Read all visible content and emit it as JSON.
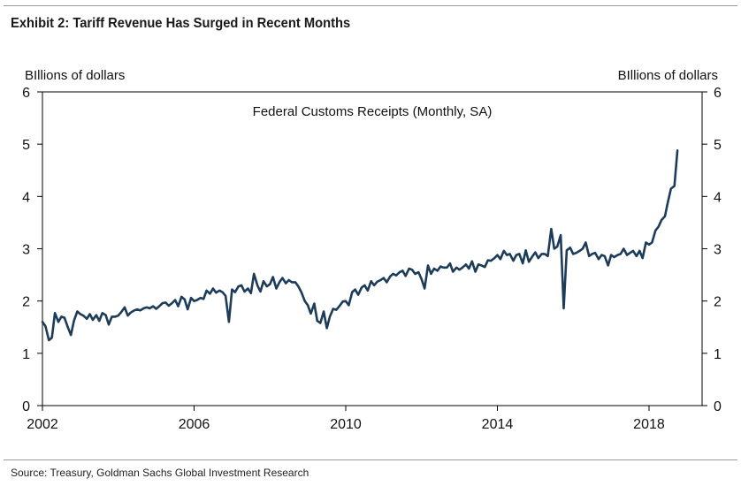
{
  "header": {
    "title": "Exhibit 2: Tariff Revenue Has Surged in Recent Months"
  },
  "footer": {
    "source": "Source: Treasury, Goldman Sachs Global Investment Research"
  },
  "chart_data": {
    "type": "line",
    "title": "Exhibit 2: Tariff Revenue Has Surged in Recent Months",
    "ylabel_left": "BIllions of dollars",
    "ylabel_right": "BIllions of dollars",
    "xlabel": "",
    "xlim": [
      2002,
      2019.4
    ],
    "ylim": [
      0,
      6
    ],
    "x_ticks": [
      2002,
      2006,
      2010,
      2014,
      2018
    ],
    "y_ticks": [
      0,
      1,
      2,
      3,
      4,
      5,
      6
    ],
    "grid": false,
    "line_color": "#1c3c5a",
    "series": [
      {
        "name": "Federal Customs Receipts (Monthly, SA)",
        "x": [
          2002.0,
          2002.08,
          2002.17,
          2002.25,
          2002.33,
          2002.42,
          2002.5,
          2002.58,
          2002.67,
          2002.75,
          2002.83,
          2002.92,
          2003.0,
          2003.08,
          2003.17,
          2003.25,
          2003.33,
          2003.42,
          2003.5,
          2003.58,
          2003.67,
          2003.75,
          2003.83,
          2003.92,
          2004.0,
          2004.08,
          2004.17,
          2004.25,
          2004.33,
          2004.42,
          2004.5,
          2004.58,
          2004.67,
          2004.75,
          2004.83,
          2004.92,
          2005.0,
          2005.08,
          2005.17,
          2005.25,
          2005.33,
          2005.42,
          2005.5,
          2005.58,
          2005.67,
          2005.75,
          2005.83,
          2005.92,
          2006.0,
          2006.08,
          2006.17,
          2006.25,
          2006.33,
          2006.42,
          2006.5,
          2006.58,
          2006.67,
          2006.75,
          2006.83,
          2006.92,
          2007.0,
          2007.08,
          2007.17,
          2007.25,
          2007.33,
          2007.42,
          2007.5,
          2007.58,
          2007.67,
          2007.75,
          2007.83,
          2007.92,
          2008.0,
          2008.08,
          2008.17,
          2008.25,
          2008.33,
          2008.42,
          2008.5,
          2008.58,
          2008.67,
          2008.75,
          2008.83,
          2008.92,
          2009.0,
          2009.08,
          2009.17,
          2009.25,
          2009.33,
          2009.42,
          2009.5,
          2009.58,
          2009.67,
          2009.75,
          2009.83,
          2009.92,
          2010.0,
          2010.08,
          2010.17,
          2010.25,
          2010.33,
          2010.42,
          2010.5,
          2010.58,
          2010.67,
          2010.75,
          2010.83,
          2010.92,
          2011.0,
          2011.08,
          2011.17,
          2011.25,
          2011.33,
          2011.42,
          2011.5,
          2011.58,
          2011.67,
          2011.75,
          2011.83,
          2011.92,
          2012.0,
          2012.08,
          2012.17,
          2012.25,
          2012.33,
          2012.42,
          2012.5,
          2012.58,
          2012.67,
          2012.75,
          2012.83,
          2012.92,
          2013.0,
          2013.08,
          2013.17,
          2013.25,
          2013.33,
          2013.42,
          2013.5,
          2013.58,
          2013.67,
          2013.75,
          2013.83,
          2013.92,
          2014.0,
          2014.08,
          2014.17,
          2014.25,
          2014.33,
          2014.42,
          2014.5,
          2014.58,
          2014.67,
          2014.75,
          2014.83,
          2014.92,
          2015.0,
          2015.08,
          2015.17,
          2015.25,
          2015.33,
          2015.42,
          2015.5,
          2015.58,
          2015.67,
          2015.75,
          2015.83,
          2015.92,
          2016.0,
          2016.08,
          2016.17,
          2016.25,
          2016.33,
          2016.42,
          2016.5,
          2016.58,
          2016.67,
          2016.75,
          2016.83,
          2016.92,
          2017.0,
          2017.08,
          2017.17,
          2017.25,
          2017.33,
          2017.42,
          2017.5,
          2017.58,
          2017.67,
          2017.75,
          2017.83,
          2017.92,
          2018.0,
          2018.08,
          2018.17,
          2018.25,
          2018.33,
          2018.42,
          2018.5,
          2018.58,
          2018.67,
          2018.75
        ],
        "values": [
          1.6,
          1.52,
          1.25,
          1.3,
          1.77,
          1.6,
          1.7,
          1.68,
          1.5,
          1.35,
          1.62,
          1.8,
          1.75,
          1.72,
          1.66,
          1.75,
          1.64,
          1.73,
          1.62,
          1.77,
          1.73,
          1.55,
          1.7,
          1.7,
          1.72,
          1.79,
          1.88,
          1.72,
          1.78,
          1.82,
          1.84,
          1.82,
          1.86,
          1.88,
          1.86,
          1.9,
          1.85,
          1.9,
          1.96,
          1.97,
          1.91,
          1.96,
          2.02,
          1.9,
          2.08,
          2.03,
          1.84,
          2.06,
          2.0,
          2.02,
          2.06,
          2.04,
          2.2,
          2.14,
          2.24,
          2.16,
          2.2,
          2.17,
          2.1,
          1.6,
          2.22,
          2.17,
          2.28,
          2.3,
          2.18,
          2.24,
          2.15,
          2.52,
          2.3,
          2.18,
          2.38,
          2.28,
          2.32,
          2.46,
          2.24,
          2.36,
          2.44,
          2.34,
          2.4,
          2.36,
          2.36,
          2.28,
          2.17,
          2.0,
          1.92,
          1.76,
          1.95,
          1.62,
          1.58,
          1.8,
          1.48,
          1.7,
          1.85,
          1.83,
          1.9,
          1.99,
          2.0,
          1.92,
          2.17,
          2.22,
          2.12,
          2.26,
          2.3,
          2.2,
          2.38,
          2.3,
          2.37,
          2.4,
          2.44,
          2.36,
          2.47,
          2.52,
          2.49,
          2.55,
          2.58,
          2.48,
          2.62,
          2.6,
          2.52,
          2.55,
          2.42,
          2.24,
          2.68,
          2.52,
          2.62,
          2.58,
          2.66,
          2.64,
          2.64,
          2.72,
          2.56,
          2.64,
          2.6,
          2.64,
          2.7,
          2.62,
          2.76,
          2.56,
          2.7,
          2.68,
          2.65,
          2.78,
          2.77,
          2.82,
          2.88,
          2.8,
          2.96,
          2.88,
          2.9,
          2.77,
          2.88,
          2.9,
          2.72,
          2.97,
          2.75,
          2.85,
          2.93,
          2.82,
          2.9,
          2.9,
          2.86,
          3.38,
          3.0,
          3.04,
          3.26,
          1.86,
          2.97,
          3.02,
          2.9,
          2.92,
          2.96,
          3.0,
          3.12,
          2.86,
          2.9,
          2.92,
          2.8,
          2.88,
          2.86,
          2.68,
          2.88,
          2.84,
          2.88,
          2.9,
          3.0,
          2.88,
          2.92,
          2.96,
          2.86,
          2.96,
          2.82,
          3.12,
          3.08,
          3.12,
          3.35,
          3.42,
          3.55,
          3.62,
          3.9,
          4.15,
          4.2,
          4.88
        ]
      }
    ]
  }
}
